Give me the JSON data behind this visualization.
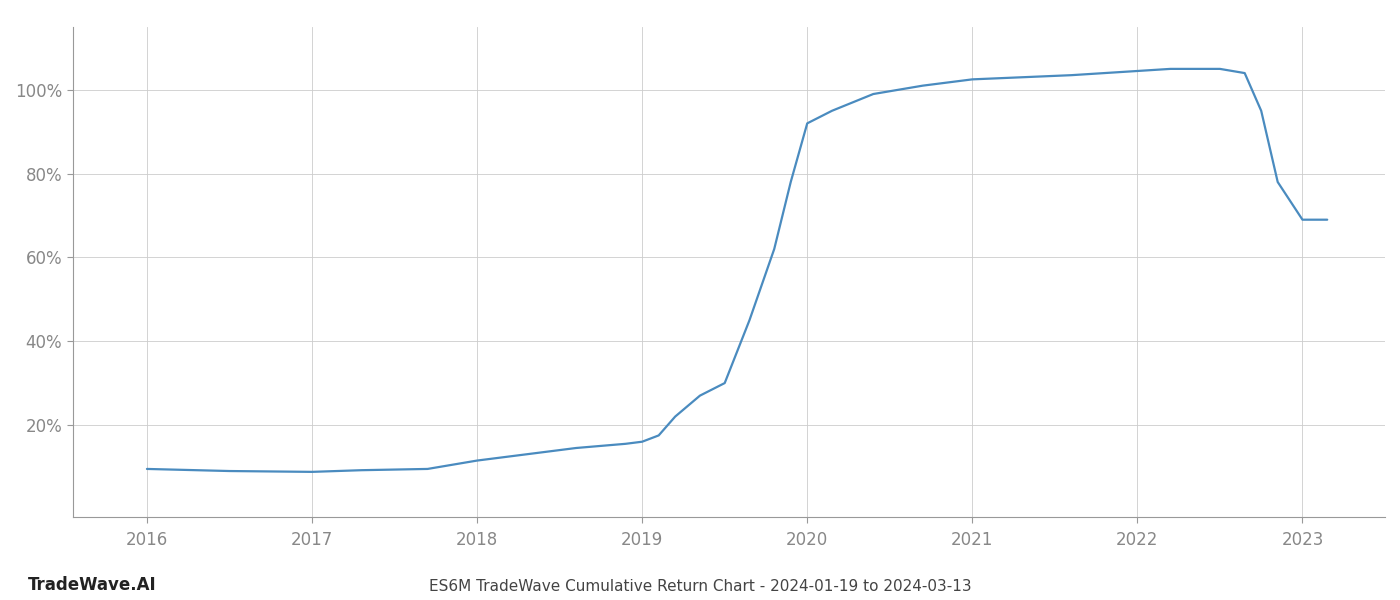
{
  "x_values": [
    2016.0,
    2016.2,
    2016.5,
    2017.0,
    2017.3,
    2017.7,
    2018.0,
    2018.3,
    2018.6,
    2018.9,
    2019.0,
    2019.1,
    2019.2,
    2019.35,
    2019.5,
    2019.65,
    2019.8,
    2019.9,
    2020.0,
    2020.15,
    2020.4,
    2020.7,
    2021.0,
    2021.3,
    2021.6,
    2022.0,
    2022.2,
    2022.5,
    2022.65,
    2022.75,
    2022.85,
    2023.0,
    2023.15
  ],
  "y_values": [
    9.5,
    9.3,
    9.0,
    8.8,
    9.2,
    9.5,
    11.5,
    13.0,
    14.5,
    15.5,
    16.0,
    17.5,
    22.0,
    27.0,
    30.0,
    45.0,
    62.0,
    78.0,
    92.0,
    95.0,
    99.0,
    101.0,
    102.5,
    103.0,
    103.5,
    104.5,
    105.0,
    105.0,
    104.0,
    95.0,
    78.0,
    69.0,
    69.0
  ],
  "line_color": "#4a8bbf",
  "line_width": 1.6,
  "title": "ES6M TradeWave Cumulative Return Chart - 2024-01-19 to 2024-03-13",
  "ytick_labels": [
    "20%",
    "40%",
    "60%",
    "80%",
    "100%"
  ],
  "ytick_values": [
    20,
    40,
    60,
    80,
    100
  ],
  "xtick_values": [
    2016,
    2017,
    2018,
    2019,
    2020,
    2021,
    2022,
    2023
  ],
  "xtick_labels": [
    "2016",
    "2017",
    "2018",
    "2019",
    "2020",
    "2021",
    "2022",
    "2023"
  ],
  "xlim": [
    2015.55,
    2023.5
  ],
  "ylim": [
    -2,
    115
  ],
  "grid_color": "#cccccc",
  "grid_linestyle": "-",
  "grid_linewidth": 0.6,
  "background_color": "#ffffff",
  "watermark_text": "TradeWave.AI",
  "watermark_fontsize": 12,
  "title_fontsize": 11,
  "tick_fontsize": 12,
  "spine_color": "#999999"
}
